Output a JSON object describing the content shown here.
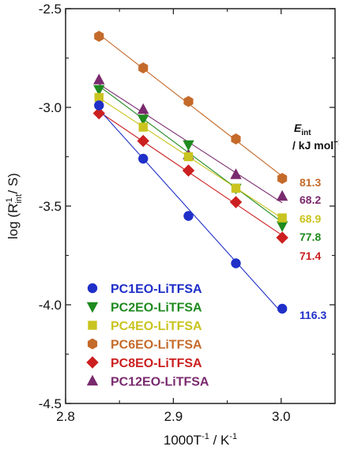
{
  "chart_data": {
    "type": "scatter",
    "xlabel_base": "1000T",
    "xlabel_exp1": "-1",
    "xlabel_mid": " / K",
    "xlabel_exp2": "-1",
    "ylabel_pre": "log (R",
    "ylabel_sub": "int",
    "ylabel_sup": "-1",
    "ylabel_post": " / S)",
    "xlim": [
      2.8,
      3.05
    ],
    "ylim": [
      -4.5,
      -2.5
    ],
    "xticks": [
      2.8,
      2.9,
      3.0
    ],
    "xtick_labels": [
      "2.8",
      "2.9",
      "3.0"
    ],
    "yticks": [
      -2.5,
      -3.0,
      -3.5,
      -4.0,
      -4.5
    ],
    "ytick_labels": [
      "-2.5",
      "-3.0",
      "-3.5",
      "-4.0",
      "-4.5"
    ],
    "eint_header": {
      "symbol": "E",
      "sub": "int",
      "unit_pre": "/ kJ mol",
      "unit_sup": "−1"
    },
    "x": [
      2.831,
      2.872,
      2.914,
      2.958,
      3.001
    ],
    "series": [
      {
        "name": "PC1EO-LiTFSA",
        "marker": "circle",
        "color": "#1f2fc8",
        "values": [
          -2.99,
          -3.26,
          -3.55,
          -3.79,
          -4.02
        ],
        "eint": "116.3"
      },
      {
        "name": "PC2EO-LiTFSA",
        "marker": "triangle-down",
        "color": "#1f8a1f",
        "values": [
          -2.91,
          -3.06,
          -3.19,
          -3.41,
          -3.6
        ],
        "eint": "77.8"
      },
      {
        "name": "PC4EO-LiTFSA",
        "marker": "square",
        "color": "#c9c41f",
        "values": [
          -2.95,
          -3.1,
          -3.25,
          -3.41,
          -3.56
        ],
        "eint": "68.9"
      },
      {
        "name": "PC6EO-LiTFSA",
        "marker": "hexagon",
        "color": "#c46a2a",
        "values": [
          -2.64,
          -2.8,
          -2.97,
          -3.16,
          -3.36
        ],
        "eint": "81.3"
      },
      {
        "name": "PC8EO-LiTFSA",
        "marker": "diamond",
        "color": "#cc1f1f",
        "values": [
          -3.03,
          -3.17,
          -3.32,
          -3.48,
          -3.66
        ],
        "eint": "71.4"
      },
      {
        "name": "PC12EO-LiTFSA",
        "marker": "triangle-up",
        "color": "#7a2a6e",
        "values": [
          -2.86,
          -3.01,
          -3.24,
          -3.34,
          -3.45
        ],
        "eint": "68.2"
      }
    ]
  }
}
